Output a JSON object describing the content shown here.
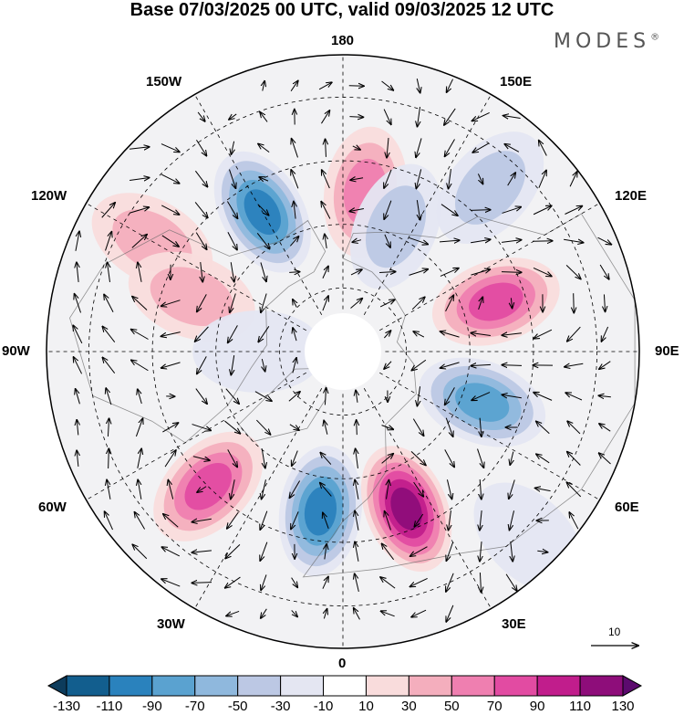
{
  "title": "Base 07/03/2025 00 UTC, valid 09/03/2025 12 UTC",
  "brand": "MODES",
  "brand_mark": "®",
  "lon_labels": {
    "n180": "180",
    "w150": "150W",
    "e150": "150E",
    "w120": "120W",
    "e120": "120E",
    "w90": "90W",
    "e90": "90E",
    "w60": "60W",
    "e60": "60E",
    "w30": "30W",
    "e30": "30E",
    "s0": "0"
  },
  "vector_scale_label": "10",
  "colorbar": {
    "labels": [
      "-130",
      "-110",
      "-90",
      "-70",
      "-50",
      "-30",
      "-10",
      "10",
      "30",
      "50",
      "70",
      "90",
      "110",
      "130"
    ],
    "colors": [
      "#0d3c5c",
      "#125e8e",
      "#2a82bd",
      "#5aa2d0",
      "#8fb8dd",
      "#bcc8e4",
      "#e4e6f2",
      "#ffffff",
      "#f9dcdc",
      "#f4aebd",
      "#ef7fb0",
      "#e24ba2",
      "#c11d8c",
      "#8e0d7a",
      "#5c0a6e"
    ]
  },
  "anomaly_centers": [
    {
      "lon": -150,
      "lat": 52,
      "value": -95
    },
    {
      "lon": 172,
      "lat": 52,
      "value": 70
    },
    {
      "lon": 157,
      "lat": 58,
      "value": -50
    },
    {
      "lon": 138,
      "lat": 38,
      "value": -40
    },
    {
      "lon": -120,
      "lat": 38,
      "value": 45
    },
    {
      "lon": -110,
      "lat": 52,
      "value": 40
    },
    {
      "lon": 108,
      "lat": 52,
      "value": 80
    },
    {
      "lon": 70,
      "lat": 55,
      "value": -85
    },
    {
      "lon": -45,
      "lat": 45,
      "value": 80
    },
    {
      "lon": -8,
      "lat": 52,
      "value": -105
    },
    {
      "lon": 22,
      "lat": 50,
      "value": 115
    },
    {
      "lon": -90,
      "lat": 70,
      "value": -30
    },
    {
      "lon": 45,
      "lat": 28,
      "value": -30
    }
  ]
}
